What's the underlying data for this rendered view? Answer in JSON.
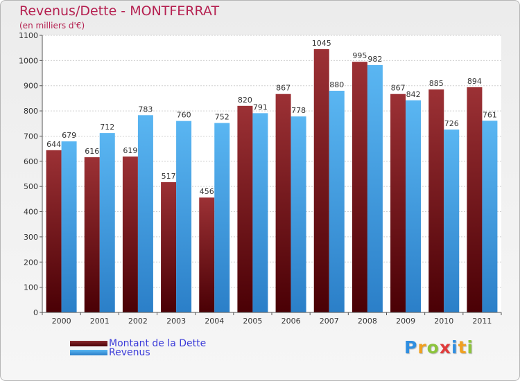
{
  "title": "Revenus/Dette - MONTFERRAT",
  "subtitle": "(en milliers d'€)",
  "chart_data": {
    "type": "bar",
    "categories": [
      "2000",
      "2001",
      "2002",
      "2003",
      "2004",
      "2005",
      "2006",
      "2007",
      "2008",
      "2009",
      "2010",
      "2011"
    ],
    "series": [
      {
        "name": "Montant de la Dette",
        "values": [
          644,
          616,
          619,
          517,
          456,
          820,
          867,
          1045,
          995,
          867,
          885,
          894
        ],
        "color": "#7a1a1e"
      },
      {
        "name": "Revenus",
        "values": [
          679,
          712,
          783,
          760,
          752,
          791,
          778,
          880,
          982,
          842,
          726,
          761
        ],
        "color": "#4aa8e8"
      }
    ],
    "yticks": [
      0,
      100,
      200,
      300,
      400,
      500,
      600,
      700,
      800,
      900,
      1000,
      1100
    ],
    "ylim": [
      0,
      1100
    ],
    "grid": true,
    "legend_position": "bottom-left"
  },
  "logo": {
    "letters": [
      "P",
      "r",
      "o",
      "x",
      "i",
      "t",
      "i"
    ],
    "colors": [
      "#2f8ee0",
      "#f0a020",
      "#8cc43c",
      "#e03b3b",
      "#2f8ee0",
      "#f0a020",
      "#8cc43c"
    ]
  }
}
